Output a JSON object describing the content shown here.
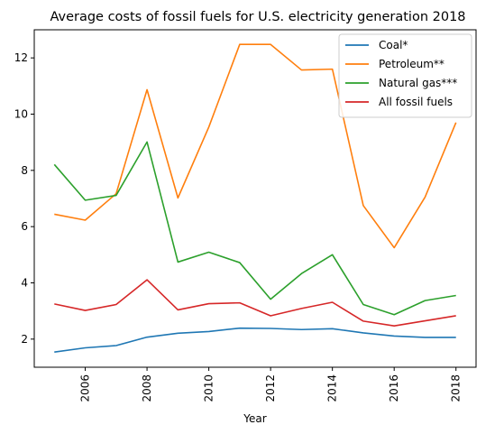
{
  "chart_data": {
    "type": "line",
    "title": "Average costs of fossil fuels for U.S. electricity generation 2018",
    "xlabel": "Year",
    "ylabel": "",
    "x": [
      2005,
      2006,
      2007,
      2008,
      2009,
      2010,
      2011,
      2012,
      2013,
      2014,
      2015,
      2016,
      2017,
      2018
    ],
    "xlim": [
      2004.35,
      2018.65
    ],
    "ylim": [
      1.0,
      13.0
    ],
    "xticks": [
      2006,
      2008,
      2010,
      2012,
      2014,
      2016,
      2018
    ],
    "xtick_labels": [
      "2006",
      "2008",
      "2010",
      "2012",
      "2014",
      "2016",
      "2018"
    ],
    "yticks": [
      2,
      4,
      6,
      8,
      10,
      12
    ],
    "ytick_labels": [
      "2",
      "4",
      "6",
      "8",
      "10",
      "12"
    ],
    "grid": false,
    "legend_position": "top-right",
    "series": [
      {
        "name": "Coal*",
        "color": "#1f77b4",
        "values": [
          1.54,
          1.69,
          1.77,
          2.07,
          2.21,
          2.27,
          2.39,
          2.38,
          2.34,
          2.37,
          2.22,
          2.11,
          2.06,
          2.06
        ]
      },
      {
        "name": "Petroleum**",
        "color": "#ff7f0e",
        "values": [
          6.44,
          6.23,
          7.17,
          10.87,
          7.02,
          9.54,
          12.48,
          12.48,
          11.57,
          11.6,
          6.75,
          5.25,
          7.05,
          9.7
        ]
      },
      {
        "name": "Natural gas***",
        "color": "#2ca02c",
        "values": [
          8.21,
          6.94,
          7.11,
          9.01,
          4.74,
          5.09,
          4.72,
          3.42,
          4.33,
          5.0,
          3.23,
          2.87,
          3.37,
          3.55
        ]
      },
      {
        "name": "All fossil fuels",
        "color": "#d62728",
        "values": [
          3.25,
          3.02,
          3.23,
          4.11,
          3.04,
          3.26,
          3.29,
          2.83,
          3.09,
          3.31,
          2.64,
          2.47,
          2.65,
          2.83
        ]
      }
    ]
  }
}
